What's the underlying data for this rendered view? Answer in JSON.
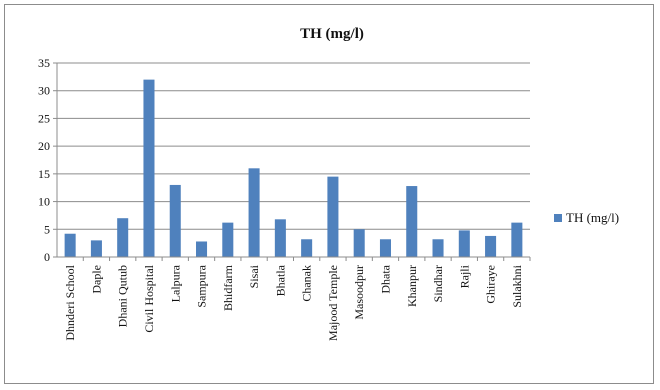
{
  "chart_data": {
    "type": "bar",
    "title": "TH (mg/l)",
    "xlabel": "",
    "ylabel": "",
    "ylim": [
      0,
      35
    ],
    "yticks": [
      0,
      5,
      10,
      15,
      20,
      25,
      30,
      35
    ],
    "grid": true,
    "legend": "right",
    "categories": [
      "Dhnderi School",
      "Daple",
      "Dhani Qutub",
      "Civil Hospital",
      "Lalpura",
      "Sampura",
      "Bhidfarm",
      "Sisai",
      "Bhatla",
      "Chanak",
      "Majood Temple",
      "Masoodpur",
      "Dhata",
      "Khanpur",
      "Sindhar",
      "Rajli",
      "Ghiraye",
      "Sulakhni"
    ],
    "series": [
      {
        "name": "TH (mg/l)",
        "color": "#4f81bd",
        "values": [
          4.2,
          3.0,
          7.0,
          32.0,
          13.0,
          2.8,
          6.2,
          16.0,
          6.8,
          3.2,
          14.5,
          5.0,
          3.2,
          12.8,
          3.2,
          4.8,
          3.8,
          6.2
        ]
      }
    ]
  }
}
